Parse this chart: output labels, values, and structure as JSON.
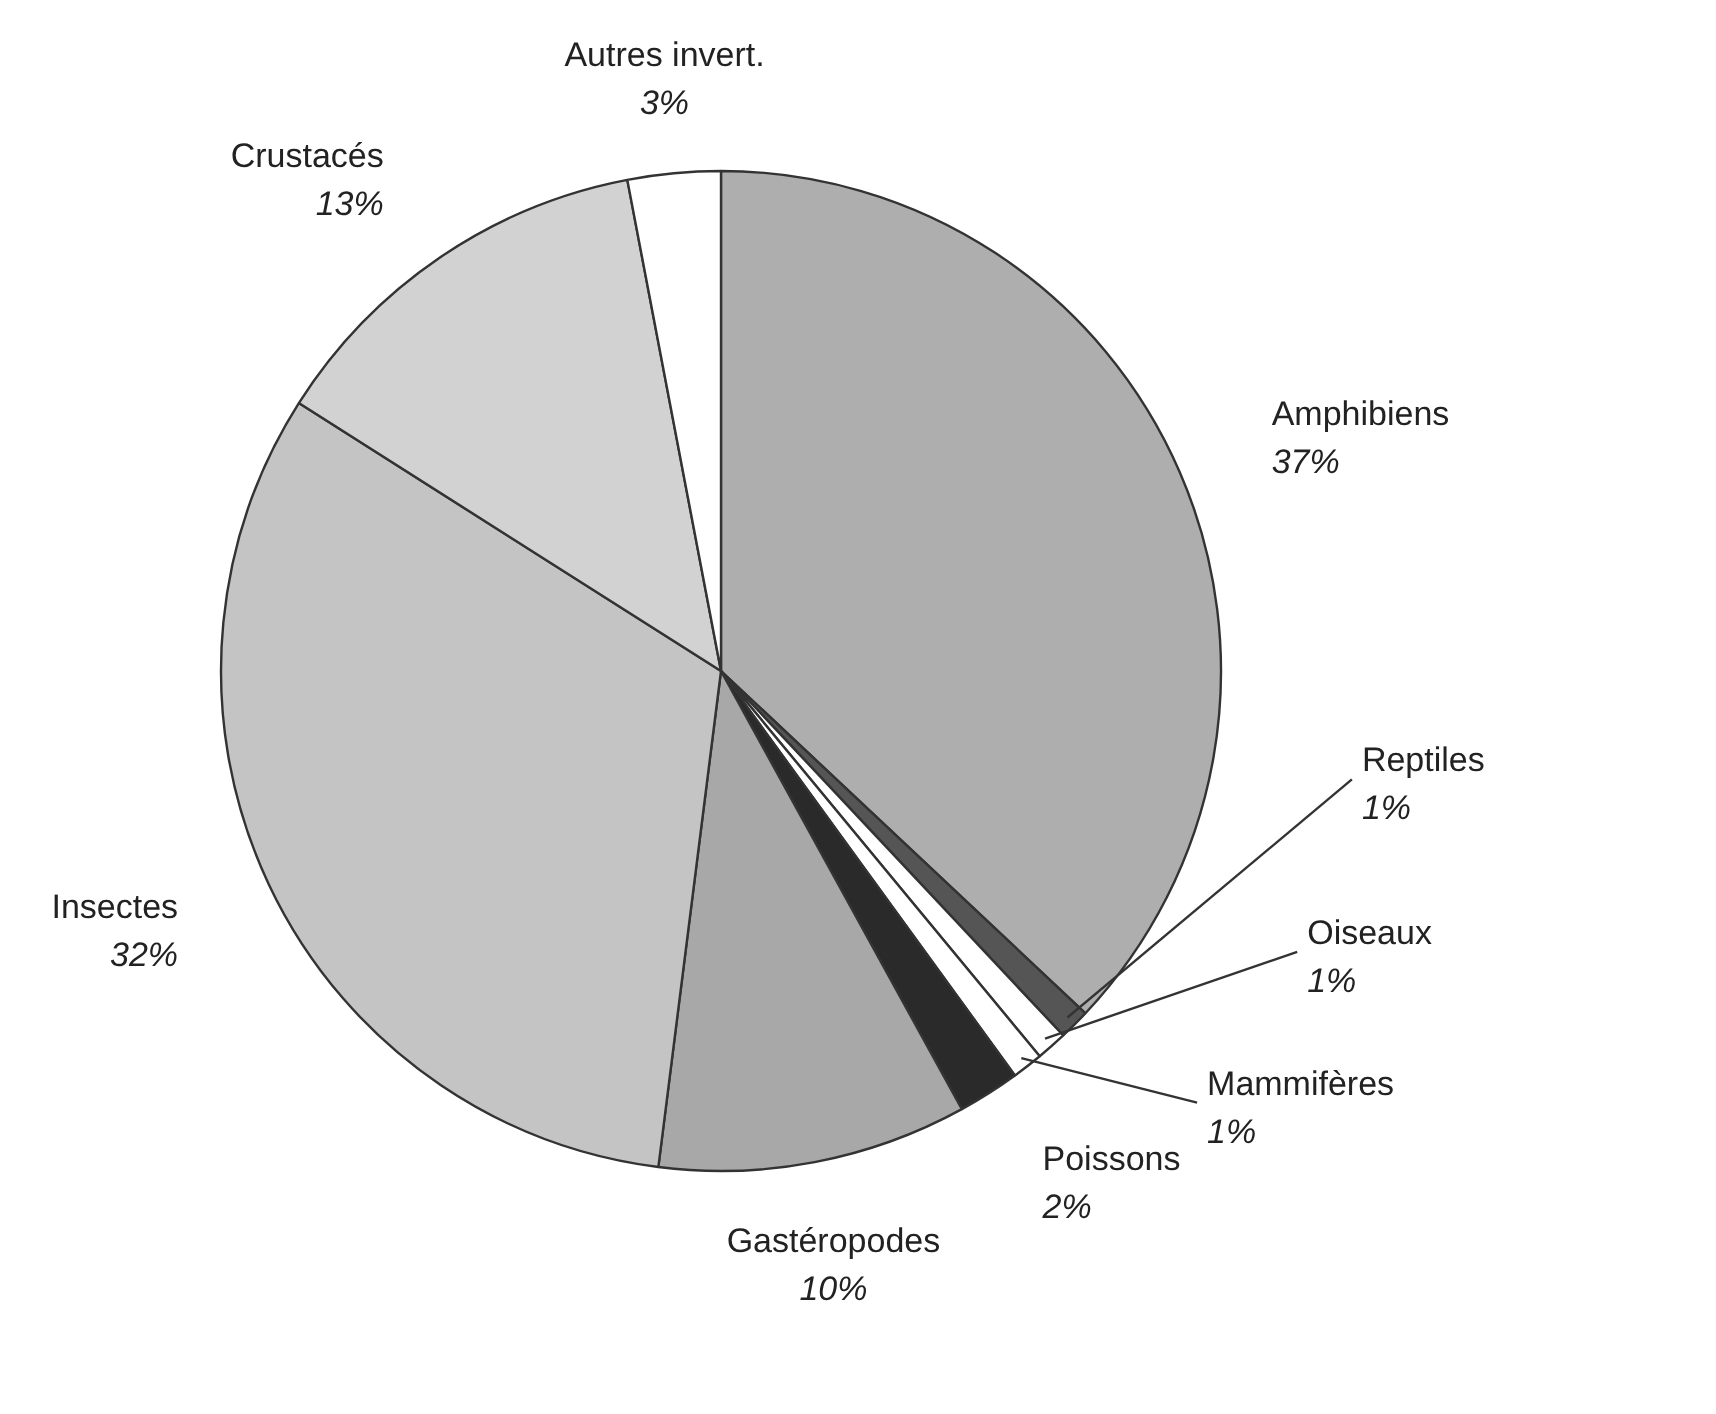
{
  "chart_data": {
    "type": "pie",
    "categories": [
      "Amphibiens",
      "Reptiles",
      "Oiseaux",
      "Mammifères",
      "Poissons",
      "Gastéropodes",
      "Insectes",
      "Crustacés",
      "Autres invert."
    ],
    "values": [
      37,
      1,
      1,
      1,
      2,
      10,
      32,
      13,
      3
    ],
    "colors": [
      "#aeaeae",
      "#555555",
      "#ffffff",
      "#ffffff",
      "#2a2a2a",
      "#a8a8a8",
      "#c4c4c4",
      "#d2d2d2",
      "#ffffff"
    ],
    "value_labels": [
      "37%",
      "1%",
      "1%",
      "1%",
      "2%",
      "10%",
      "32%",
      "13%",
      "3%"
    ]
  }
}
